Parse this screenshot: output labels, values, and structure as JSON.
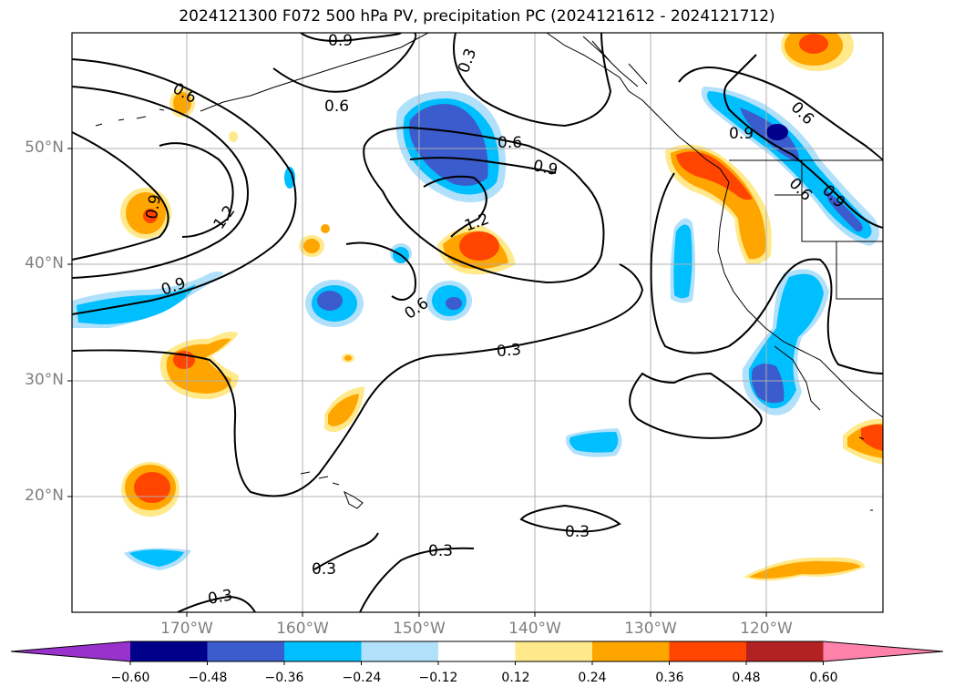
{
  "title": "2024121300 F072 500 hPa PV, precipitation PC (2024121612 - 2024121712)",
  "lat_labels": [
    "50°N",
    "40°N",
    "30°N",
    "20°N"
  ],
  "lon_labels": [
    "170°W",
    "160°W",
    "150°W",
    "140°W",
    "130°W",
    "120°W"
  ],
  "contour_labels": [
    "0.9",
    "0.3",
    "0.6",
    "0.6",
    "0.6",
    "0.9",
    "0.6",
    "0.9",
    "0.6",
    "0.9",
    "0.9",
    "1.2",
    "1.2",
    "0.9",
    "0.6",
    "0.3",
    "0.3",
    "0.3",
    "0.3",
    "0.3"
  ],
  "colorbar": {
    "ticks": [
      "−0.60",
      "−0.48",
      "−0.36",
      "−0.24",
      "−0.12",
      "0.12",
      "0.24",
      "0.36",
      "0.48",
      "0.60"
    ],
    "colors": [
      "#9932cc",
      "#00008b",
      "#3a5ccc",
      "#00bfff",
      "#b0e0fa",
      "#ffffff",
      "#ffe98a",
      "#ffa500",
      "#ff4500",
      "#b22222",
      "#ff82ab"
    ]
  }
}
